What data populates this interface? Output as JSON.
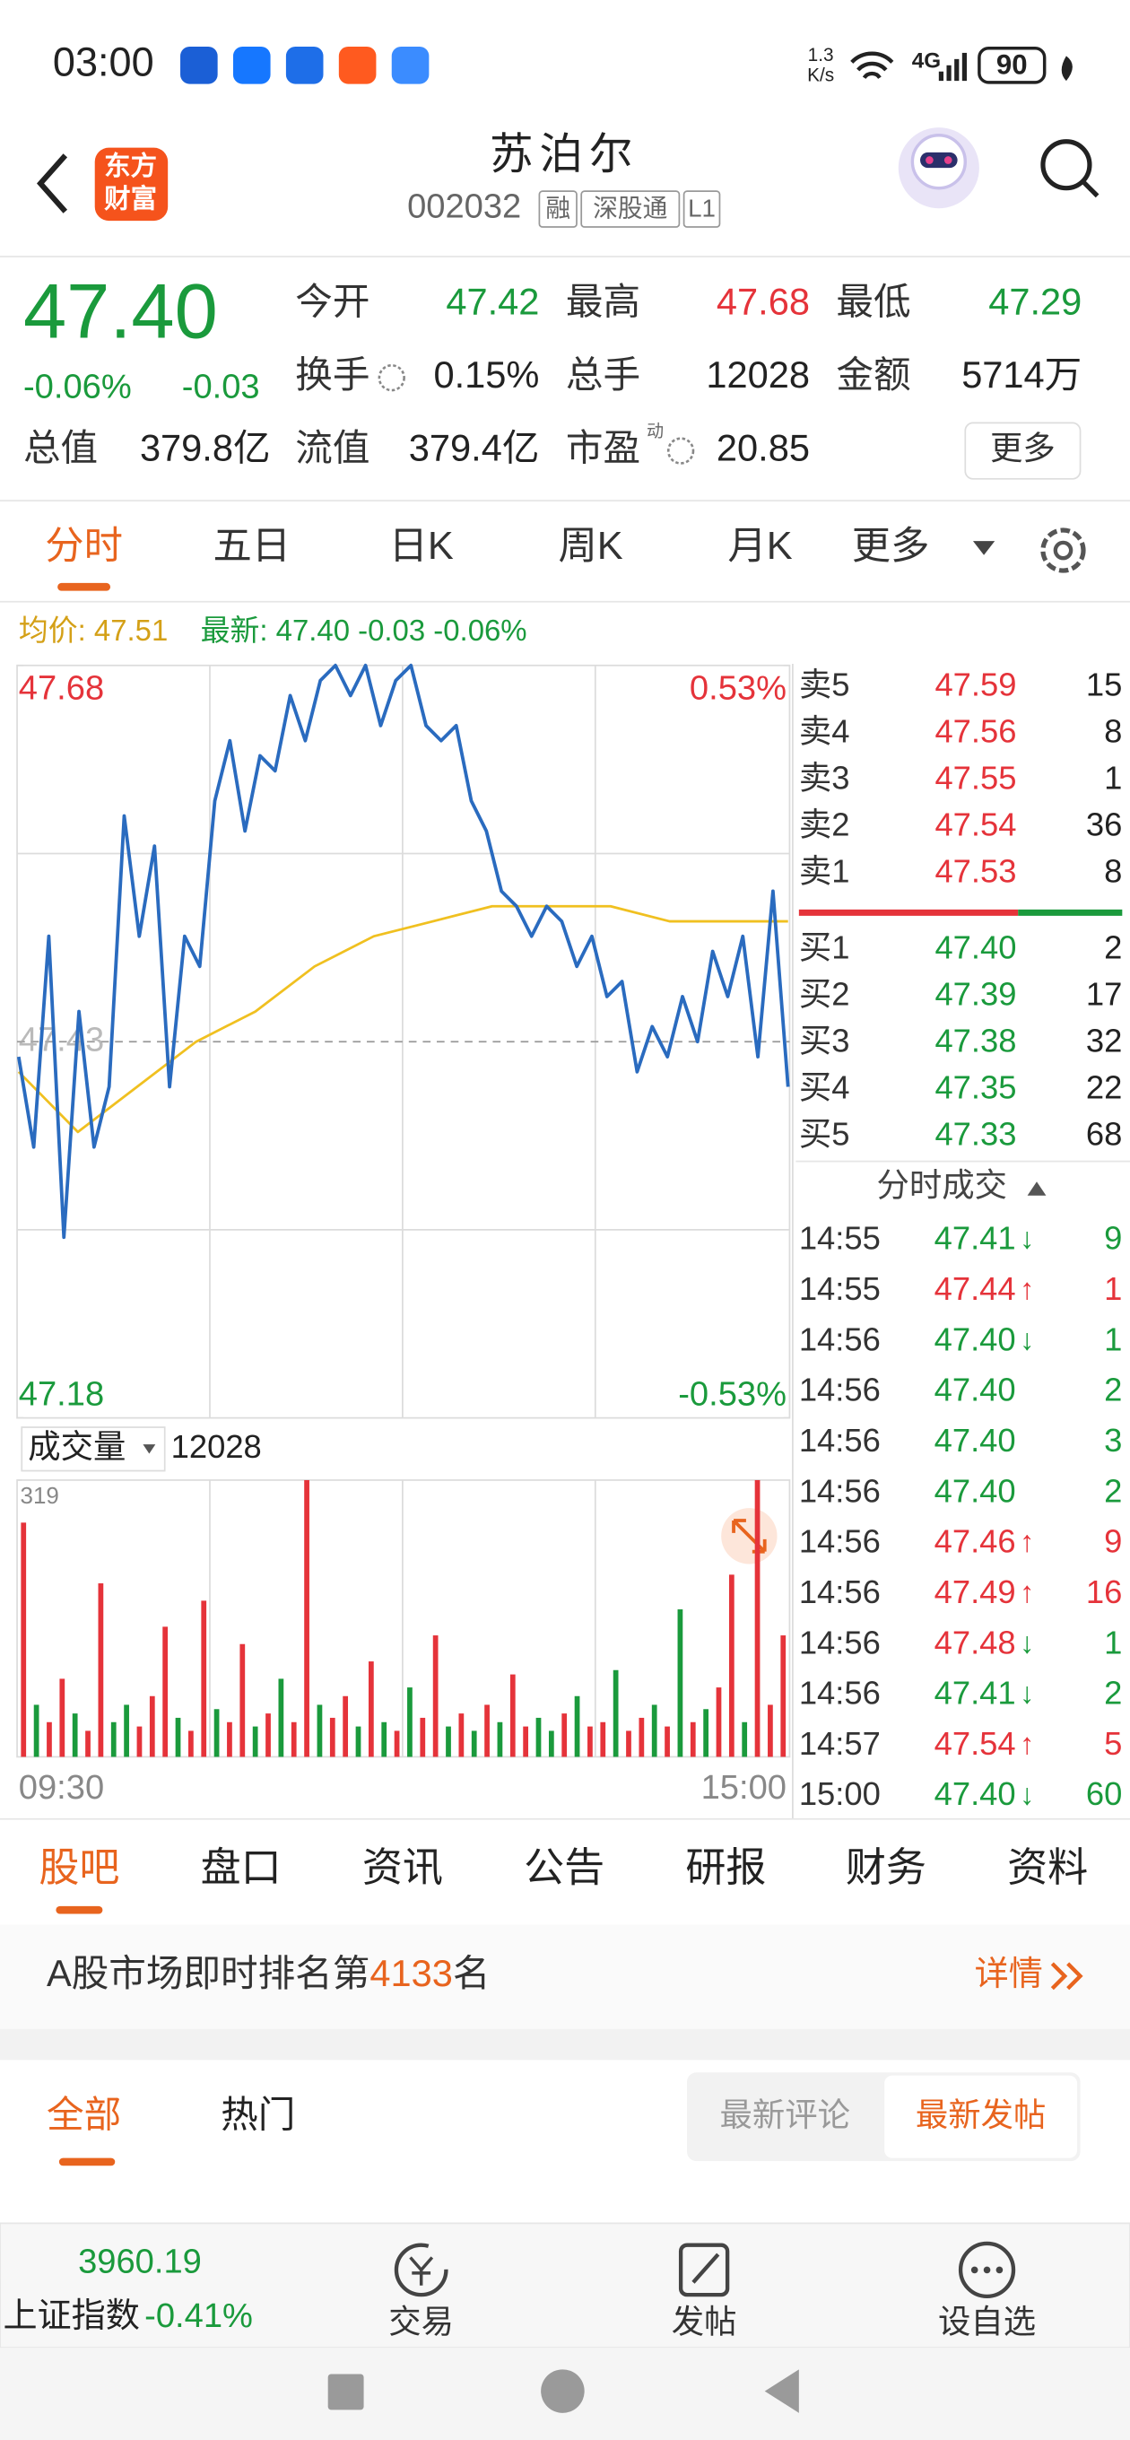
{
  "status_bar": {
    "time": "03:00",
    "speed": "1.3",
    "speed_unit": "K/s",
    "network": "4G",
    "battery": "90"
  },
  "header": {
    "logo": [
      "东方",
      "财富"
    ],
    "title": "苏泊尔",
    "code": "002032",
    "tags": [
      "融",
      "深股通",
      "L1"
    ]
  },
  "quote": {
    "price": "47.40",
    "change_pct": "-0.06%",
    "change": "-0.03",
    "more": "更多",
    "stats": [
      {
        "label": "今开",
        "value": "47.42",
        "color": "#1a9a3c"
      },
      {
        "label": "最高",
        "value": "47.68",
        "color": "#e5333a"
      },
      {
        "label": "最低",
        "value": "47.29",
        "color": "#1a9a3c"
      },
      {
        "label": "换手",
        "value": "0.15%",
        "color": "#222222",
        "info": true
      },
      {
        "label": "总手",
        "value": "12028",
        "color": "#222222"
      },
      {
        "label": "金额",
        "value": "5714万",
        "color": "#222222"
      },
      {
        "label": "总值",
        "value": "379.8亿",
        "color": "#222222"
      },
      {
        "label": "流值",
        "value": "379.4亿",
        "color": "#222222"
      },
      {
        "label": "市盈",
        "sup": "动",
        "value": "20.85",
        "color": "#222222",
        "info": true
      }
    ]
  },
  "tabs": {
    "items": [
      "分时",
      "五日",
      "日K",
      "周K",
      "月K",
      "更多"
    ],
    "active": 0
  },
  "legend": {
    "avg": "均价: 47.51",
    "latest": "最新: 47.40 -0.03 -0.06%"
  },
  "chart": {
    "type": "line",
    "ylim": [
      47.18,
      47.68
    ],
    "yticks": [
      47.68,
      47.18
    ],
    "y2lim": [
      -0.53,
      0.53
    ],
    "y2ticks": [
      {
        "value": 0.53,
        "label": "0.53%"
      },
      {
        "value": -0.53,
        "label": "-0.53%"
      }
    ],
    "prev_close": 47.43,
    "xticks": [
      "09:30",
      "15:00"
    ],
    "price": {
      "color": "#2a6bbf",
      "values": [
        47.42,
        47.36,
        47.5,
        47.3,
        47.45,
        47.36,
        47.4,
        47.58,
        47.5,
        47.56,
        47.4,
        47.5,
        47.48,
        47.59,
        47.63,
        47.57,
        47.62,
        47.61,
        47.66,
        47.63,
        47.67,
        47.68,
        47.66,
        47.68,
        47.64,
        47.67,
        47.68,
        47.64,
        47.63,
        47.64,
        47.59,
        47.57,
        47.53,
        47.52,
        47.5,
        47.52,
        47.51,
        47.48,
        47.5,
        47.46,
        47.47,
        47.41,
        47.44,
        47.42,
        47.46,
        47.43,
        47.49,
        47.46,
        47.5,
        47.42,
        47.53,
        47.4
      ]
    },
    "avg": {
      "color": "#f0c020",
      "values": [
        47.41,
        47.37,
        47.4,
        47.43,
        47.45,
        47.48,
        47.5,
        47.51,
        47.52,
        47.52,
        47.52,
        47.51,
        47.51,
        47.51
      ]
    },
    "volume": {
      "label": "成交量",
      "total": "12028",
      "ylim": [
        0,
        319
      ],
      "yticks": [
        319
      ],
      "values": [
        270,
        60,
        40,
        90,
        50,
        30,
        200,
        40,
        60,
        35,
        70,
        150,
        45,
        30,
        180,
        55,
        40,
        130,
        35,
        50,
        90,
        40,
        319,
        60,
        45,
        70,
        35,
        110,
        40,
        30,
        80,
        45,
        140,
        35,
        50,
        30,
        60,
        40,
        95,
        35,
        45,
        30,
        50,
        70,
        35,
        40,
        100,
        30,
        45,
        60,
        35,
        170,
        40,
        55,
        80,
        210,
        40,
        319,
        60,
        140
      ],
      "up": [
        true,
        false,
        true,
        true,
        false,
        true,
        true,
        false,
        false,
        true,
        true,
        true,
        false,
        true,
        true,
        false,
        true,
        true,
        false,
        true,
        false,
        true,
        true,
        false,
        true,
        true,
        false,
        true,
        false,
        true,
        false,
        true,
        true,
        false,
        true,
        false,
        true,
        false,
        true,
        true,
        false,
        false,
        true,
        false,
        true,
        true,
        false,
        true,
        true,
        false,
        true,
        false,
        true,
        false,
        true,
        true,
        false,
        true,
        true,
        true
      ]
    }
  },
  "order_book": {
    "asks": [
      {
        "label": "卖5",
        "price": "47.59",
        "volume": "15"
      },
      {
        "label": "卖4",
        "price": "47.56",
        "volume": "8"
      },
      {
        "label": "卖3",
        "price": "47.55",
        "volume": "1"
      },
      {
        "label": "卖2",
        "price": "47.54",
        "volume": "36"
      },
      {
        "label": "卖1",
        "price": "47.53",
        "volume": "8"
      }
    ],
    "bids": [
      {
        "label": "买1",
        "price": "47.40",
        "volume": "2"
      },
      {
        "label": "买2",
        "price": "47.39",
        "volume": "17"
      },
      {
        "label": "买3",
        "price": "47.38",
        "volume": "32"
      },
      {
        "label": "买4",
        "price": "47.35",
        "volume": "22"
      },
      {
        "label": "买5",
        "price": "47.33",
        "volume": "68"
      }
    ]
  },
  "trades": {
    "title": "分时成交",
    "rows": [
      {
        "time": "14:55",
        "price": "47.41",
        "arrow": "↓",
        "volume": "9"
      },
      {
        "time": "14:55",
        "price": "47.44",
        "arrow": "↑",
        "volume": "1"
      },
      {
        "time": "14:56",
        "price": "47.40",
        "arrow": "↓",
        "volume": "1"
      },
      {
        "time": "14:56",
        "price": "47.40",
        "volume": "2"
      },
      {
        "time": "14:56",
        "price": "47.40",
        "volume": "3"
      },
      {
        "time": "14:56",
        "price": "47.40",
        "volume": "2"
      },
      {
        "time": "14:56",
        "price": "47.46",
        "arrow": "↑",
        "volume": "9"
      },
      {
        "time": "14:56",
        "price": "47.49",
        "arrow": "↑",
        "volume": "16"
      },
      {
        "time": "14:56",
        "price": "47.48",
        "arrow": "↓",
        "volume": "1"
      },
      {
        "time": "14:56",
        "price": "47.41",
        "arrow": "↓",
        "volume": "2"
      },
      {
        "time": "14:57",
        "price": "47.54",
        "arrow": "↑",
        "volume": "5"
      },
      {
        "time": "15:00",
        "price": "47.40",
        "arrow": "↓",
        "volume": "60"
      }
    ]
  },
  "section_tabs": {
    "items": [
      "股吧",
      "盘口",
      "资讯",
      "公告",
      "研报",
      "财务",
      "资料"
    ],
    "active": 0
  },
  "rank": {
    "prefix": "A股市场即时排名第",
    "rank": "4133",
    "suffix": "名",
    "detail": "详情"
  },
  "feed": {
    "tabs": [
      "全部",
      "热门"
    ],
    "sort": [
      "最新评论",
      "最新发帖"
    ]
  },
  "index_bar": {
    "value": "3960.19",
    "name": "上证指数",
    "change": "-0.41%"
  },
  "actions": [
    "交易",
    "发帖",
    "设自选"
  ]
}
